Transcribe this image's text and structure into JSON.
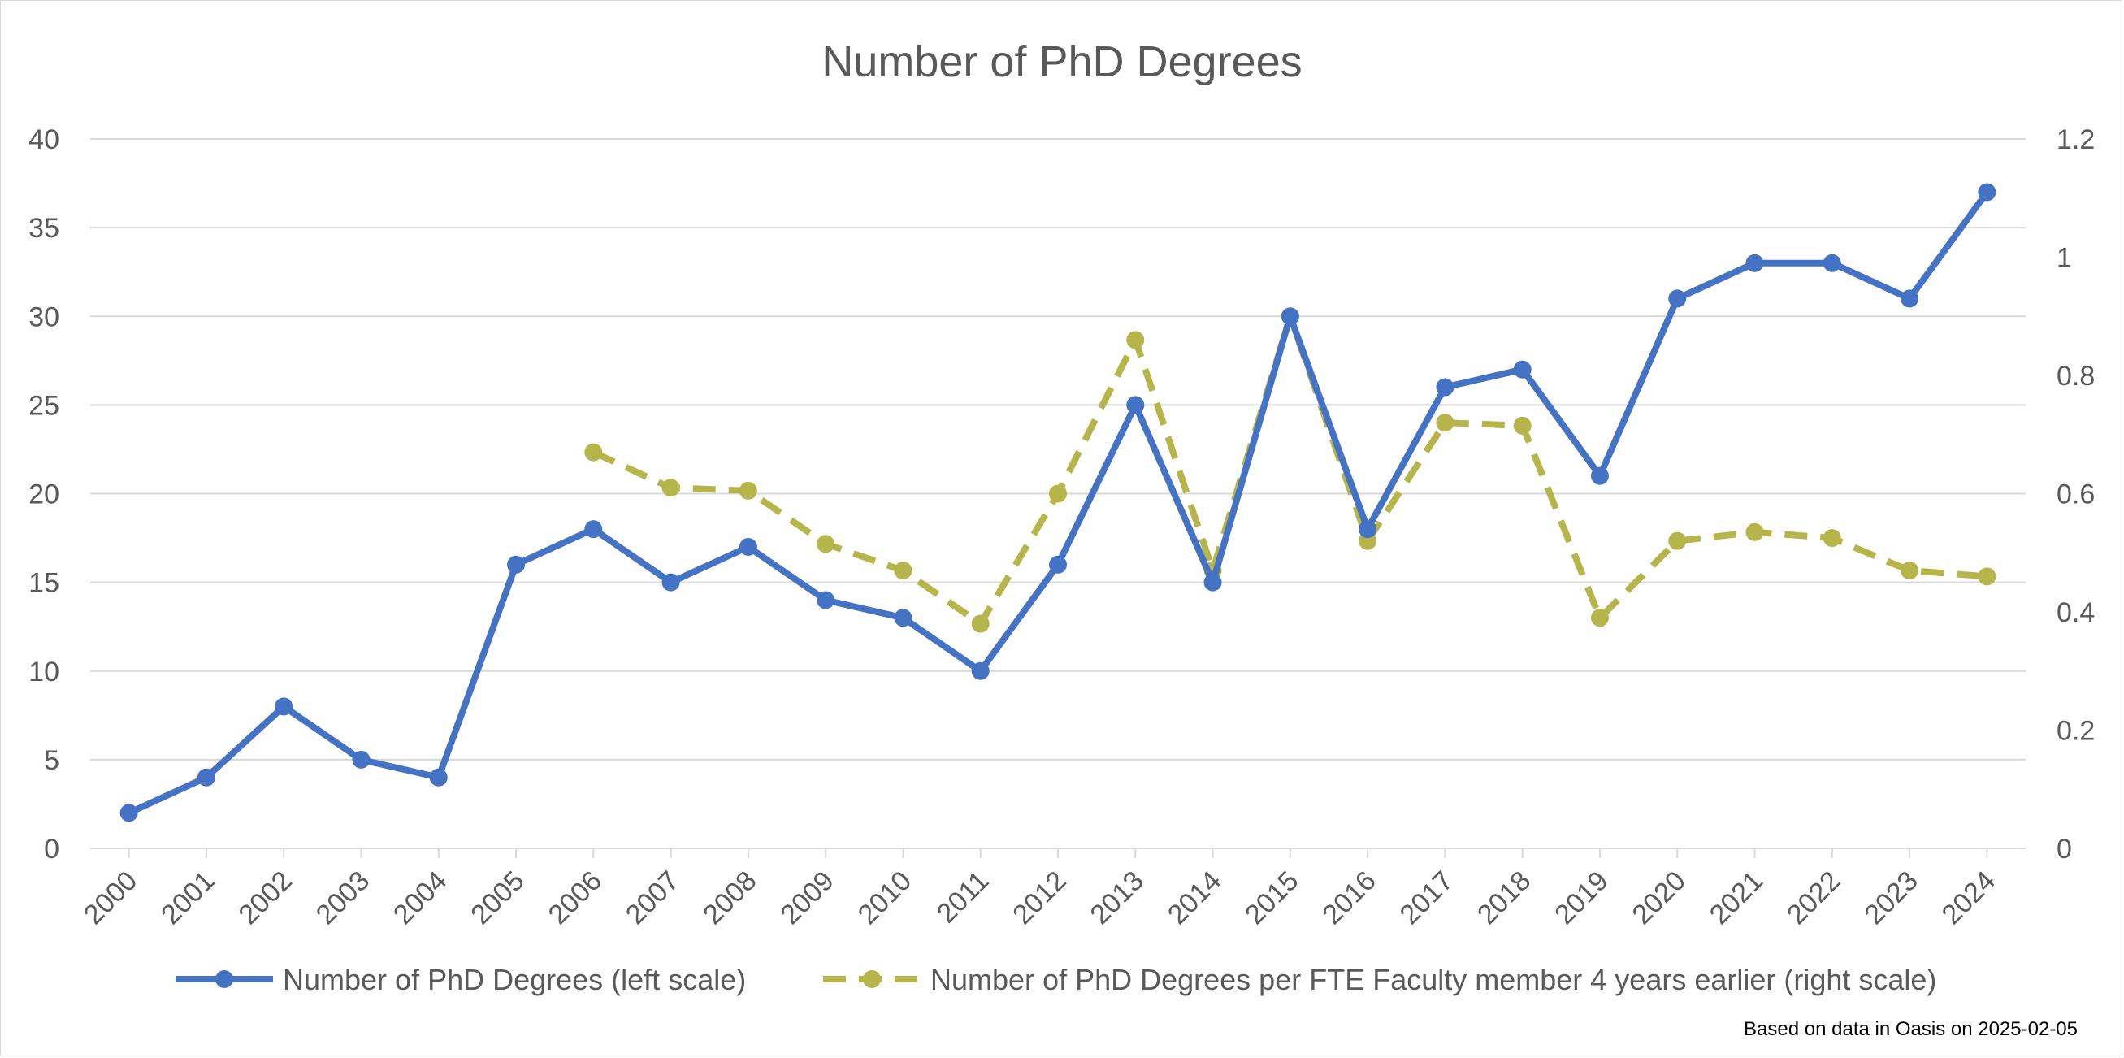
{
  "chart_data": {
    "type": "line",
    "title": "Number of PhD Degrees",
    "categories": [
      "2000",
      "2001",
      "2002",
      "2003",
      "2004",
      "2005",
      "2006",
      "2007",
      "2008",
      "2009",
      "2010",
      "2011",
      "2012",
      "2013",
      "2014",
      "2015",
      "2016",
      "2017",
      "2018",
      "2019",
      "2020",
      "2021",
      "2022",
      "2023",
      "2024"
    ],
    "y_left": {
      "range": [
        0,
        40
      ],
      "ticks": [
        "0",
        "5",
        "10",
        "15",
        "20",
        "25",
        "30",
        "35",
        "40"
      ]
    },
    "y_right": {
      "range": [
        0,
        1.2
      ],
      "ticks": [
        "0",
        "0.2",
        "0.4",
        "0.6",
        "0.8",
        "1",
        "1.2"
      ]
    },
    "grid": true,
    "legend_position": "bottom",
    "series": [
      {
        "name": "Number of PhD Degrees (left scale)",
        "axis": "left",
        "color": "#4472C4",
        "style": "solid",
        "values": [
          2,
          4,
          8,
          5,
          4,
          16,
          18,
          15,
          17,
          14,
          13,
          10,
          16,
          25,
          15,
          30,
          18,
          26,
          27,
          21,
          31,
          33,
          33,
          31,
          37
        ]
      },
      {
        "name": "Number of PhD Degrees per FTE Faculty member 4 years earlier (right scale)",
        "axis": "right",
        "color": "#B5B54A",
        "style": "dashed",
        "values": [
          null,
          null,
          null,
          null,
          null,
          null,
          0.67,
          0.61,
          0.605,
          0.515,
          0.47,
          0.38,
          0.6,
          0.86,
          0.47,
          0.9,
          0.52,
          0.72,
          0.715,
          0.39,
          0.52,
          0.535,
          0.525,
          0.47,
          0.46
        ]
      }
    ]
  },
  "footnote": "Based on data in Oasis on 2025-02-05"
}
